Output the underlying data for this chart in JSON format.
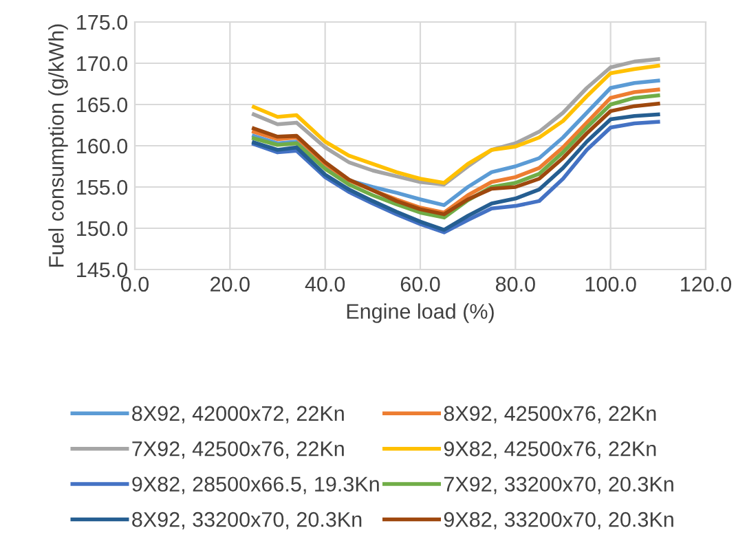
{
  "chart_data": {
    "type": "line",
    "xlabel": "Engine load (%)",
    "ylabel": "Fuel consumption (g/kWh)",
    "x": [
      25,
      30,
      34,
      40,
      45,
      50,
      55,
      60,
      65,
      70,
      75,
      80,
      85,
      90,
      95,
      100,
      105,
      110
    ],
    "xlim": [
      0,
      120
    ],
    "xticks": [
      {
        "value": 0,
        "label": "0.0"
      },
      {
        "value": 20,
        "label": "20.0"
      },
      {
        "value": 40,
        "label": "40.0"
      },
      {
        "value": 60,
        "label": "60.0"
      },
      {
        "value": 80,
        "label": "80.0"
      },
      {
        "value": 100,
        "label": "100.0"
      },
      {
        "value": 120,
        "label": "120.0"
      }
    ],
    "ylim": [
      145,
      175
    ],
    "yticks": [
      {
        "value": 145,
        "label": "145.0"
      },
      {
        "value": 150,
        "label": "150.0"
      },
      {
        "value": 155,
        "label": "155.0"
      },
      {
        "value": 160,
        "label": "160.0"
      },
      {
        "value": 165,
        "label": "165.0"
      },
      {
        "value": 170,
        "label": "170.0"
      },
      {
        "value": 175,
        "label": "175.0"
      }
    ],
    "grid": true,
    "legend": "bottom",
    "marker": "none",
    "line_style": "solid",
    "series": [
      {
        "name": "8X92, 42000x72, 22Kn",
        "color": "#5b9bd5",
        "values": [
          161.2,
          160.3,
          160.5,
          157.5,
          155.8,
          155.0,
          154.3,
          153.5,
          152.8,
          155.0,
          156.8,
          157.5,
          158.5,
          161.0,
          164.0,
          167.0,
          167.6,
          167.9
        ]
      },
      {
        "name": "8X92, 42500x76, 22Kn",
        "color": "#ed7d31",
        "values": [
          161.7,
          160.8,
          161.0,
          157.8,
          155.8,
          154.6,
          153.5,
          152.5,
          151.9,
          154.0,
          155.6,
          156.2,
          157.3,
          159.8,
          162.8,
          165.8,
          166.5,
          166.8
        ]
      },
      {
        "name": "7X92, 42500x76, 22Kn",
        "color": "#a5a5a5",
        "values": [
          163.8,
          162.6,
          162.8,
          159.8,
          158.0,
          157.0,
          156.3,
          155.6,
          155.3,
          157.5,
          159.5,
          160.3,
          161.7,
          164.0,
          167.0,
          169.5,
          170.2,
          170.5
        ]
      },
      {
        "name": "9X82, 42500x76, 22Kn",
        "color": "#ffc000",
        "values": [
          164.7,
          163.5,
          163.7,
          160.5,
          158.8,
          157.8,
          156.8,
          156.0,
          155.5,
          157.8,
          159.5,
          159.9,
          161.0,
          163.0,
          166.0,
          168.8,
          169.3,
          169.7
        ]
      },
      {
        "name": "9X82, 28500x66.5, 19.3Kn",
        "color": "#4472c4",
        "values": [
          160.2,
          159.2,
          159.4,
          156.2,
          154.4,
          153.0,
          151.7,
          150.5,
          149.5,
          151.0,
          152.4,
          152.7,
          153.3,
          156.0,
          159.5,
          162.2,
          162.7,
          162.9
        ]
      },
      {
        "name": "7X92, 33200x70, 20.3Kn",
        "color": "#70ad47",
        "values": [
          160.9,
          160.1,
          160.3,
          157.2,
          155.3,
          154.0,
          152.9,
          151.9,
          151.3,
          153.4,
          155.0,
          155.5,
          156.6,
          159.2,
          162.2,
          165.0,
          165.8,
          166.1
        ]
      },
      {
        "name": "8X92, 33200x70, 20.3Kn",
        "color": "#255e91",
        "values": [
          160.4,
          159.5,
          159.8,
          156.5,
          154.7,
          153.3,
          152.0,
          150.8,
          149.8,
          151.5,
          153.0,
          153.6,
          154.7,
          157.3,
          160.5,
          163.2,
          163.6,
          163.8
        ]
      },
      {
        "name": "9X82, 33200x70, 20.3Kn",
        "color": "#9e480e",
        "values": [
          162.1,
          161.1,
          161.2,
          158.0,
          155.9,
          154.6,
          153.3,
          152.3,
          151.7,
          153.5,
          154.8,
          155.0,
          156.0,
          158.5,
          161.5,
          164.2,
          164.8,
          165.1
        ]
      }
    ]
  }
}
